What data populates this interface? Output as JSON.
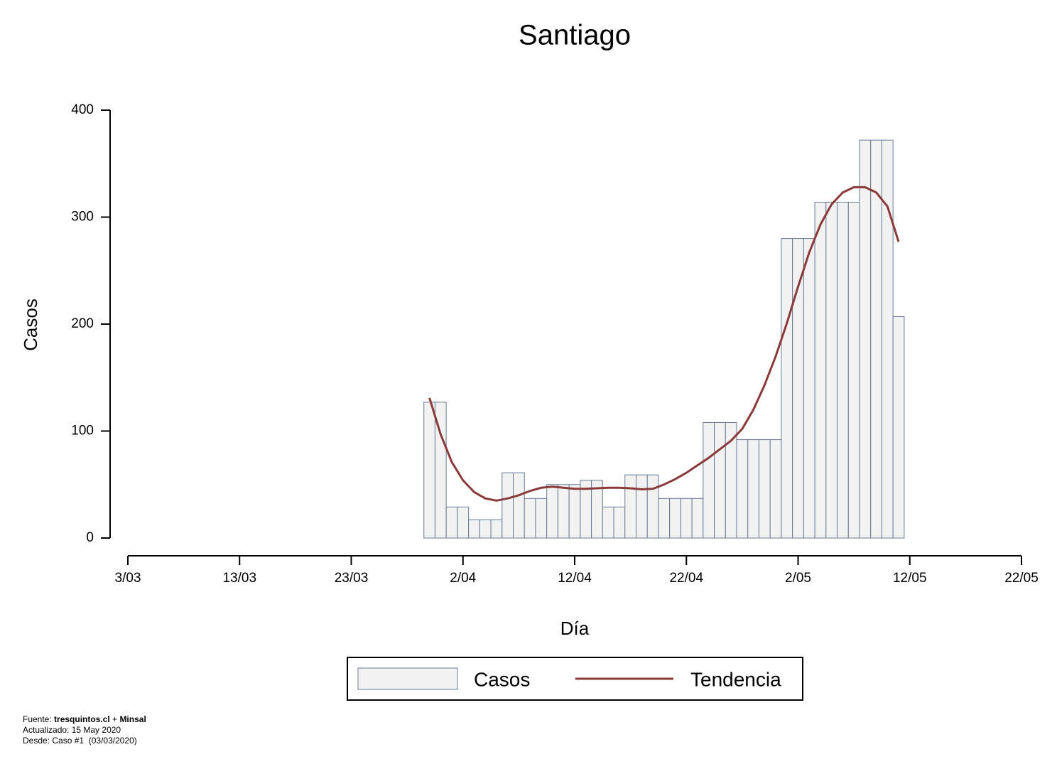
{
  "chart_data": {
    "type": "bar",
    "title": "Santiago",
    "xlabel": "Día",
    "ylabel": "Casos",
    "x": [
      27,
      28,
      29,
      30,
      31,
      32,
      33,
      34,
      35,
      36,
      37,
      38,
      39,
      40,
      41,
      42,
      43,
      44,
      45,
      46,
      47,
      48,
      49,
      50,
      51,
      52,
      53,
      54,
      55,
      56,
      57,
      58,
      59,
      60,
      61,
      62,
      63,
      64,
      65,
      66,
      67,
      68,
      69
    ],
    "series": [
      {
        "name": "Casos",
        "type": "bar",
        "color": "#f2f2f2",
        "values": [
          127,
          127,
          29,
          29,
          17,
          17,
          17,
          61,
          61,
          37,
          37,
          50,
          50,
          50,
          54,
          54,
          29,
          29,
          59,
          59,
          59,
          37,
          37,
          37,
          37,
          108,
          108,
          108,
          92,
          92,
          92,
          92,
          280,
          280,
          280,
          314,
          314,
          314,
          314,
          372,
          372,
          372,
          207
        ]
      },
      {
        "name": "Tendencia",
        "type": "line",
        "color": "#8b3a3a",
        "values": [
          131,
          97,
          71,
          54,
          43,
          37,
          35,
          37,
          40,
          44,
          47,
          48,
          47,
          46,
          46,
          46.5,
          47,
          47,
          46.5,
          45.5,
          46,
          50,
          55,
          61,
          68,
          75,
          83,
          91,
          102,
          120,
          143,
          170,
          201,
          235,
          267,
          293,
          312,
          323,
          328,
          328,
          323,
          310,
          277
        ]
      }
    ],
    "xlim": [
      0,
      80
    ],
    "xticks": [
      {
        "value": 0,
        "label": "3/03"
      },
      {
        "value": 10,
        "label": "13/03"
      },
      {
        "value": 20,
        "label": "23/03"
      },
      {
        "value": 30,
        "label": "2/04"
      },
      {
        "value": 40,
        "label": "12/04"
      },
      {
        "value": 50,
        "label": "22/04"
      },
      {
        "value": 60,
        "label": "2/05"
      },
      {
        "value": 70,
        "label": "12/05"
      },
      {
        "value": 80,
        "label": "22/05"
      }
    ],
    "ylim": [
      0,
      400
    ],
    "yticks": [
      0,
      100,
      200,
      300,
      400
    ],
    "grid": false,
    "footer": {
      "source_label": "Fuente:",
      "source_1": "tresquintos.cl",
      "source_plus": "+",
      "source_2": "Minsal",
      "updated": "Actualizado: 15 May 2020",
      "since": "Desde: Caso #1  (03/03/2020)"
    }
  }
}
